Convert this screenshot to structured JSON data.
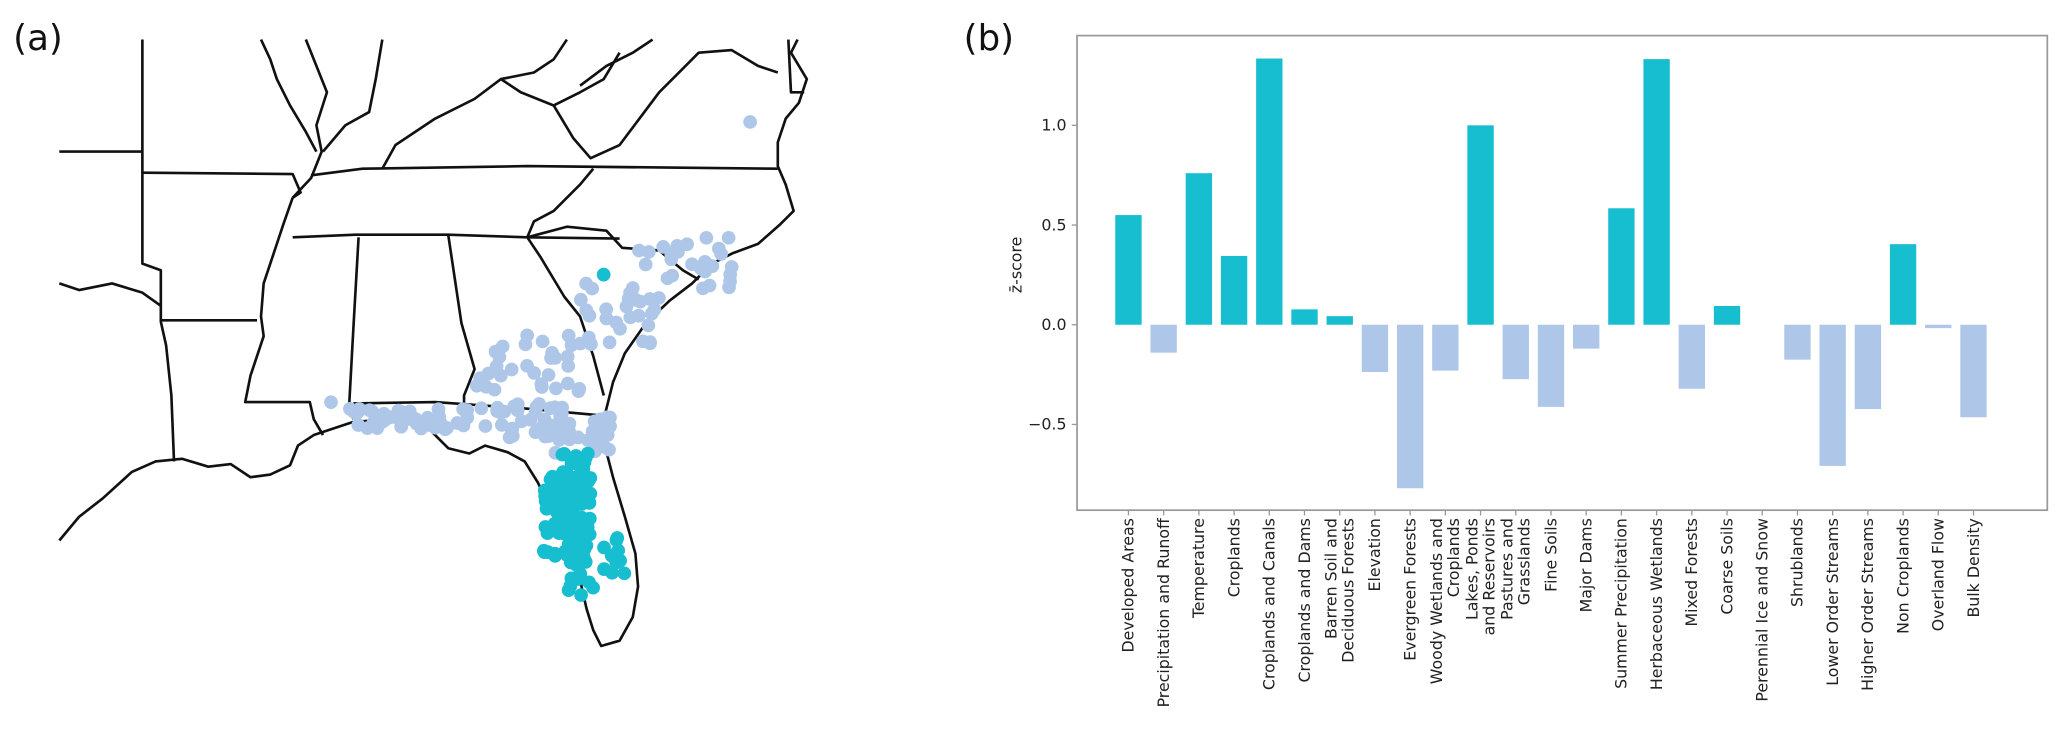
{
  "panels": {
    "a_label": "(a)",
    "b_label": "(b)"
  },
  "colors": {
    "positive": "#17becf",
    "negative": "#aec7e8",
    "map_line": "#111111"
  },
  "map": {
    "legend": "",
    "point_groups": [
      "positive-sites",
      "negative-sites"
    ]
  },
  "chart_data": {
    "type": "bar",
    "title": "",
    "xlabel": "",
    "ylabel": "z̄-score",
    "ylim": [
      -0.93,
      1.45
    ],
    "yticks": [
      -0.5,
      0.0,
      0.5,
      1.0
    ],
    "ytick_labels": [
      "−0.5",
      "0.0",
      "0.5",
      "1.0"
    ],
    "grid": false,
    "categories": [
      "Developed Areas",
      "Precipitation and Runoff",
      "Temperature",
      "Croplands",
      "Croplands and Canals",
      "Croplands and Dams",
      "Barren Soil and\nDeciduous Forests",
      "Elevation",
      "Evergreen Forests",
      "Woody Wetlands and\nCroplands",
      "Lakes, Ponds\nand Reservoirs",
      "Pastures and\nGrasslands",
      "Fine Soils",
      "Major Dams",
      "Summer Precipitation",
      "Herbaceous Wetlands",
      "Mixed Forests",
      "Coarse Soils",
      "Perennial Ice and Snow",
      "Shrublands",
      "Lower Order Streams",
      "Higher Order Streams",
      "Non Croplands",
      "Overland Flow",
      "Bulk Density"
    ],
    "values": [
      0.55,
      -0.14,
      0.76,
      0.345,
      1.335,
      0.077,
      0.043,
      -0.237,
      -0.82,
      -0.23,
      1.0,
      -0.273,
      -0.412,
      -0.12,
      0.584,
      1.332,
      -0.321,
      0.094,
      0.0,
      -0.175,
      -0.708,
      -0.423,
      0.404,
      -0.017,
      -0.464
    ]
  }
}
